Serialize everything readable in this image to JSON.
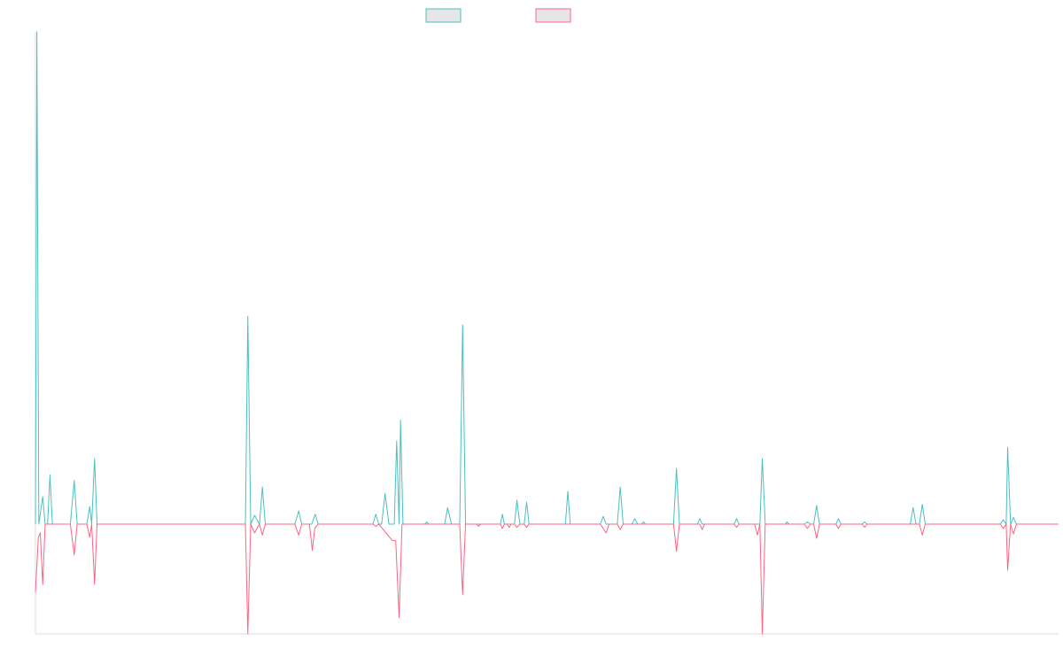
{
  "chart_data": {
    "type": "line",
    "title": "",
    "xlabel": "",
    "ylabel": "",
    "grid": false,
    "legend": "top-center",
    "ylim": [
      -100,
      450
    ],
    "series": [
      {
        "color": "#4bc0c0",
        "fill": "#e6e6e6",
        "points": [
          [
            0,
            0
          ],
          [
            0.3,
            450
          ],
          [
            0.7,
            0
          ],
          [
            1.5,
            25
          ],
          [
            2.0,
            0
          ],
          [
            2.5,
            0
          ],
          [
            3.0,
            45
          ],
          [
            3.5,
            0
          ],
          [
            4.5,
            0
          ],
          [
            7.2,
            0
          ],
          [
            8.0,
            40
          ],
          [
            8.6,
            0
          ],
          [
            10.6,
            0
          ],
          [
            11.2,
            16
          ],
          [
            11.6,
            0
          ],
          [
            12.2,
            60
          ],
          [
            12.7,
            0
          ],
          [
            43.3,
            0
          ],
          [
            43.8,
            190
          ],
          [
            44.4,
            0
          ],
          [
            45.2,
            8
          ],
          [
            46.2,
            0
          ],
          [
            46.8,
            34
          ],
          [
            47.4,
            0
          ],
          [
            53.5,
            0
          ],
          [
            54.3,
            12
          ],
          [
            54.9,
            0
          ],
          [
            57.0,
            0
          ],
          [
            57.7,
            9
          ],
          [
            58.3,
            0
          ],
          [
            69.6,
            0
          ],
          [
            70.2,
            9
          ],
          [
            70.8,
            0
          ],
          [
            71.4,
            0
          ],
          [
            72.1,
            28
          ],
          [
            72.9,
            0
          ],
          [
            74.0,
            0
          ],
          [
            74.5,
            76
          ],
          [
            75.0,
            0
          ],
          [
            75.3,
            95
          ],
          [
            75.8,
            0
          ],
          [
            80.3,
            0
          ],
          [
            80.7,
            2
          ],
          [
            81.1,
            0
          ],
          [
            84.4,
            0
          ],
          [
            85.0,
            15
          ],
          [
            85.8,
            0
          ],
          [
            87.5,
            0
          ],
          [
            88.1,
            182
          ],
          [
            88.7,
            0
          ],
          [
            95.9,
            0
          ],
          [
            96.3,
            9
          ],
          [
            96.7,
            0
          ],
          [
            98.8,
            0
          ],
          [
            99.3,
            22
          ],
          [
            99.9,
            0
          ],
          [
            100.8,
            0
          ],
          [
            101.3,
            20
          ],
          [
            101.8,
            0
          ],
          [
            109.3,
            0
          ],
          [
            109.8,
            30
          ],
          [
            110.3,
            0
          ],
          [
            116.5,
            0
          ],
          [
            117.1,
            7
          ],
          [
            117.7,
            0
          ],
          [
            120.0,
            0
          ],
          [
            120.6,
            34
          ],
          [
            121.2,
            0
          ],
          [
            123.0,
            0
          ],
          [
            123.6,
            5
          ],
          [
            124.2,
            0
          ],
          [
            125.0,
            0
          ],
          [
            125.4,
            2
          ],
          [
            125.8,
            0
          ],
          [
            131.6,
            0
          ],
          [
            132.2,
            51
          ],
          [
            132.8,
            0
          ],
          [
            136.5,
            0
          ],
          [
            137.0,
            5
          ],
          [
            137.5,
            0
          ],
          [
            144.1,
            0
          ],
          [
            144.6,
            5
          ],
          [
            145.1,
            0
          ],
          [
            147.5,
            0
          ],
          [
            149.4,
            0
          ],
          [
            149.9,
            60
          ],
          [
            150.5,
            0
          ],
          [
            154.6,
            0
          ],
          [
            155.0,
            2
          ],
          [
            155.4,
            0
          ],
          [
            158.6,
            0
          ],
          [
            159.2,
            2
          ],
          [
            159.8,
            0
          ],
          [
            160.5,
            0
          ],
          [
            161.1,
            17
          ],
          [
            161.7,
            0
          ],
          [
            165.1,
            0
          ],
          [
            165.6,
            5
          ],
          [
            166.1,
            0
          ],
          [
            170.5,
            0
          ],
          [
            171.0,
            2
          ],
          [
            171.5,
            0
          ],
          [
            180.4,
            0
          ],
          [
            181.0,
            15
          ],
          [
            181.6,
            0
          ],
          [
            182.3,
            0
          ],
          [
            182.9,
            18
          ],
          [
            183.5,
            0
          ],
          [
            199.0,
            0
          ],
          [
            199.6,
            4
          ],
          [
            200.2,
            0
          ],
          [
            200.5,
            70
          ],
          [
            201.1,
            0
          ],
          [
            201.7,
            6
          ],
          [
            202.3,
            0
          ],
          [
            211.0,
            0
          ]
        ]
      },
      {
        "color": "#ff6384",
        "fill": "#e6e6e6",
        "points": [
          [
            0,
            -62
          ],
          [
            0.6,
            -12
          ],
          [
            1.0,
            -8
          ],
          [
            1.5,
            -55
          ],
          [
            2.0,
            0
          ],
          [
            2.5,
            0
          ],
          [
            3.0,
            0
          ],
          [
            3.5,
            0
          ],
          [
            4.5,
            0
          ],
          [
            7.2,
            0
          ],
          [
            8.0,
            -28
          ],
          [
            8.6,
            0
          ],
          [
            10.6,
            0
          ],
          [
            11.2,
            -12
          ],
          [
            11.6,
            0
          ],
          [
            12.2,
            -55
          ],
          [
            12.7,
            0
          ],
          [
            43.3,
            0
          ],
          [
            43.8,
            -100
          ],
          [
            44.4,
            0
          ],
          [
            45.2,
            -8
          ],
          [
            46.2,
            0
          ],
          [
            46.8,
            -10
          ],
          [
            47.4,
            0
          ],
          [
            53.5,
            0
          ],
          [
            54.3,
            -10
          ],
          [
            54.9,
            0
          ],
          [
            56.5,
            0
          ],
          [
            57.1,
            -24
          ],
          [
            57.6,
            -4
          ],
          [
            58.3,
            0
          ],
          [
            69.6,
            0
          ],
          [
            70.2,
            -2
          ],
          [
            70.8,
            0
          ],
          [
            73.6,
            -15
          ],
          [
            74.3,
            -15
          ],
          [
            75.0,
            -85
          ],
          [
            75.6,
            0
          ],
          [
            80.3,
            0
          ],
          [
            80.7,
            0
          ],
          [
            81.1,
            0
          ],
          [
            87.5,
            0
          ],
          [
            88.1,
            -64
          ],
          [
            88.7,
            0
          ],
          [
            91.0,
            0
          ],
          [
            91.4,
            -2
          ],
          [
            91.8,
            0
          ],
          [
            95.9,
            0
          ],
          [
            96.3,
            -4
          ],
          [
            96.7,
            0
          ],
          [
            97.3,
            0
          ],
          [
            97.7,
            -3
          ],
          [
            98.1,
            0
          ],
          [
            98.8,
            0
          ],
          [
            99.3,
            -3
          ],
          [
            99.9,
            0
          ],
          [
            100.8,
            0
          ],
          [
            101.3,
            -3
          ],
          [
            101.8,
            0
          ],
          [
            116.5,
            0
          ],
          [
            117.1,
            -4
          ],
          [
            117.7,
            -8
          ],
          [
            118.3,
            0
          ],
          [
            120.0,
            0
          ],
          [
            120.6,
            -5
          ],
          [
            121.2,
            0
          ],
          [
            131.6,
            0
          ],
          [
            132.2,
            -25
          ],
          [
            132.8,
            0
          ],
          [
            137.0,
            0
          ],
          [
            137.5,
            -5
          ],
          [
            138.0,
            0
          ],
          [
            144.1,
            0
          ],
          [
            144.6,
            -3
          ],
          [
            145.1,
            0
          ],
          [
            148.3,
            0
          ],
          [
            148.9,
            -10
          ],
          [
            149.4,
            0
          ],
          [
            149.9,
            -100
          ],
          [
            150.5,
            0
          ],
          [
            154.6,
            0
          ],
          [
            155.0,
            0
          ],
          [
            155.4,
            0
          ],
          [
            158.6,
            0
          ],
          [
            159.2,
            -4
          ],
          [
            159.8,
            0
          ],
          [
            160.5,
            0
          ],
          [
            161.1,
            -13
          ],
          [
            161.7,
            0
          ],
          [
            165.1,
            0
          ],
          [
            165.6,
            -4
          ],
          [
            166.1,
            0
          ],
          [
            170.5,
            0
          ],
          [
            171.0,
            -3
          ],
          [
            171.5,
            0
          ],
          [
            182.3,
            0
          ],
          [
            182.9,
            -10
          ],
          [
            183.5,
            0
          ],
          [
            199.0,
            0
          ],
          [
            199.6,
            -4
          ],
          [
            200.2,
            0
          ],
          [
            200.5,
            -42
          ],
          [
            201.1,
            0
          ],
          [
            201.7,
            -9
          ],
          [
            202.3,
            0
          ],
          [
            211.0,
            0
          ]
        ]
      }
    ]
  }
}
